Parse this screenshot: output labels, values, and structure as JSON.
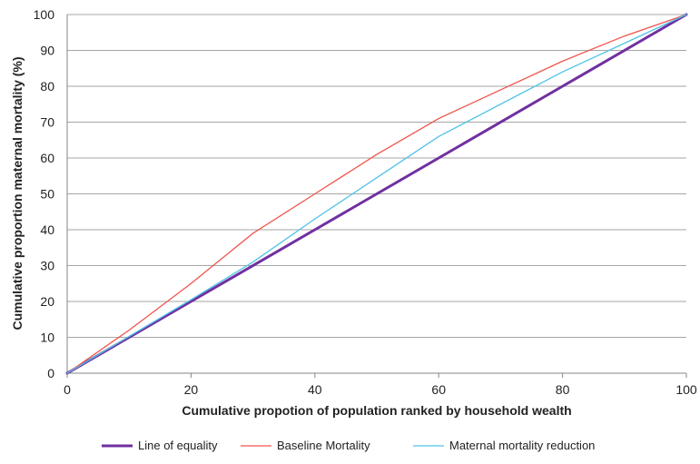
{
  "chart_data": {
    "type": "line",
    "title": "",
    "xlabel": "Cumulative propotion of population ranked by household wealth",
    "ylabel": "Cumulative proportion maternal mortality  (%)",
    "xlim": [
      0,
      100
    ],
    "ylim": [
      0,
      100
    ],
    "x_ticks": [
      "0",
      "20",
      "40",
      "60",
      "80",
      "100"
    ],
    "y_ticks": [
      "0",
      "10",
      "20",
      "30",
      "40",
      "50",
      "60",
      "70",
      "80",
      "90",
      "100"
    ],
    "grid": "horizontal",
    "legend_position": "bottom",
    "series": [
      {
        "name": "Line of equality",
        "color": "#7030A0",
        "x": [
          0,
          20,
          40,
          60,
          80,
          100
        ],
        "y": [
          0,
          20,
          40,
          60,
          80,
          100
        ]
      },
      {
        "name": "Baseline Mortality",
        "color": "#F0544C",
        "x": [
          0,
          10,
          20,
          30,
          40,
          50,
          60,
          70,
          80,
          90,
          100
        ],
        "y": [
          0,
          12,
          25,
          39,
          50,
          61,
          71,
          79,
          87,
          94,
          100
        ]
      },
      {
        "name": "Maternal mortality reduction",
        "color": "#4FC3E8",
        "x": [
          0,
          20,
          30,
          40,
          50,
          60,
          70,
          80,
          90,
          100
        ],
        "y": [
          0,
          20.5,
          31,
          43,
          54.5,
          66,
          75,
          84,
          92,
          100
        ]
      }
    ]
  }
}
